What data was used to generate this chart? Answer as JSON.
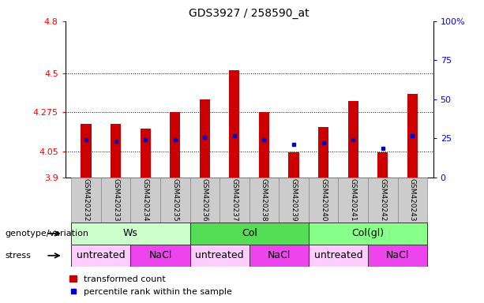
{
  "title": "GDS3927 / 258590_at",
  "samples": [
    "GSM420232",
    "GSM420233",
    "GSM420234",
    "GSM420235",
    "GSM420236",
    "GSM420237",
    "GSM420238",
    "GSM420239",
    "GSM420240",
    "GSM420241",
    "GSM420242",
    "GSM420243"
  ],
  "bar_bottoms": [
    3.9,
    3.9,
    3.9,
    3.9,
    3.9,
    3.9,
    3.9,
    3.9,
    3.9,
    3.9,
    3.9,
    3.9
  ],
  "bar_tops": [
    4.21,
    4.21,
    4.18,
    4.275,
    4.35,
    4.52,
    4.275,
    4.045,
    4.19,
    4.34,
    4.045,
    4.38
  ],
  "blue_dots": [
    4.12,
    4.11,
    4.12,
    4.12,
    4.13,
    4.14,
    4.12,
    4.09,
    4.1,
    4.12,
    4.07,
    4.14
  ],
  "ylim_left": [
    3.9,
    4.8
  ],
  "ylim_right": [
    0,
    100
  ],
  "yticks_left": [
    3.9,
    4.05,
    4.275,
    4.5,
    4.8
  ],
  "yticks_right": [
    0,
    25,
    50,
    75,
    100
  ],
  "ytick_labels_left": [
    "3.9",
    "4.05",
    "4.275",
    "4.5",
    "4.8"
  ],
  "ytick_labels_right": [
    "0",
    "25",
    "50",
    "75",
    "100%"
  ],
  "hlines": [
    4.05,
    4.275,
    4.5
  ],
  "bar_color": "#cc0000",
  "dot_color": "#0000cc",
  "genotype_groups": [
    {
      "label": "Ws",
      "start": 0,
      "end": 4,
      "color": "#ccffcc"
    },
    {
      "label": "Col",
      "start": 4,
      "end": 8,
      "color": "#55dd55"
    },
    {
      "label": "Col(gl)",
      "start": 8,
      "end": 12,
      "color": "#88ff88"
    }
  ],
  "stress_groups": [
    {
      "label": "untreated",
      "start": 0,
      "end": 2,
      "color": "#ffccff"
    },
    {
      "label": "NaCl",
      "start": 2,
      "end": 4,
      "color": "#ee44ee"
    },
    {
      "label": "untreated",
      "start": 4,
      "end": 6,
      "color": "#ffccff"
    },
    {
      "label": "NaCl",
      "start": 6,
      "end": 8,
      "color": "#ee44ee"
    },
    {
      "label": "untreated",
      "start": 8,
      "end": 10,
      "color": "#ffccff"
    },
    {
      "label": "NaCl",
      "start": 10,
      "end": 12,
      "color": "#ee44ee"
    }
  ],
  "legend_red_label": "transformed count",
  "legend_blue_label": "percentile rank within the sample",
  "genotype_label": "genotype/variation",
  "stress_label": "stress",
  "sample_bg_color": "#cccccc",
  "bar_width": 0.35
}
